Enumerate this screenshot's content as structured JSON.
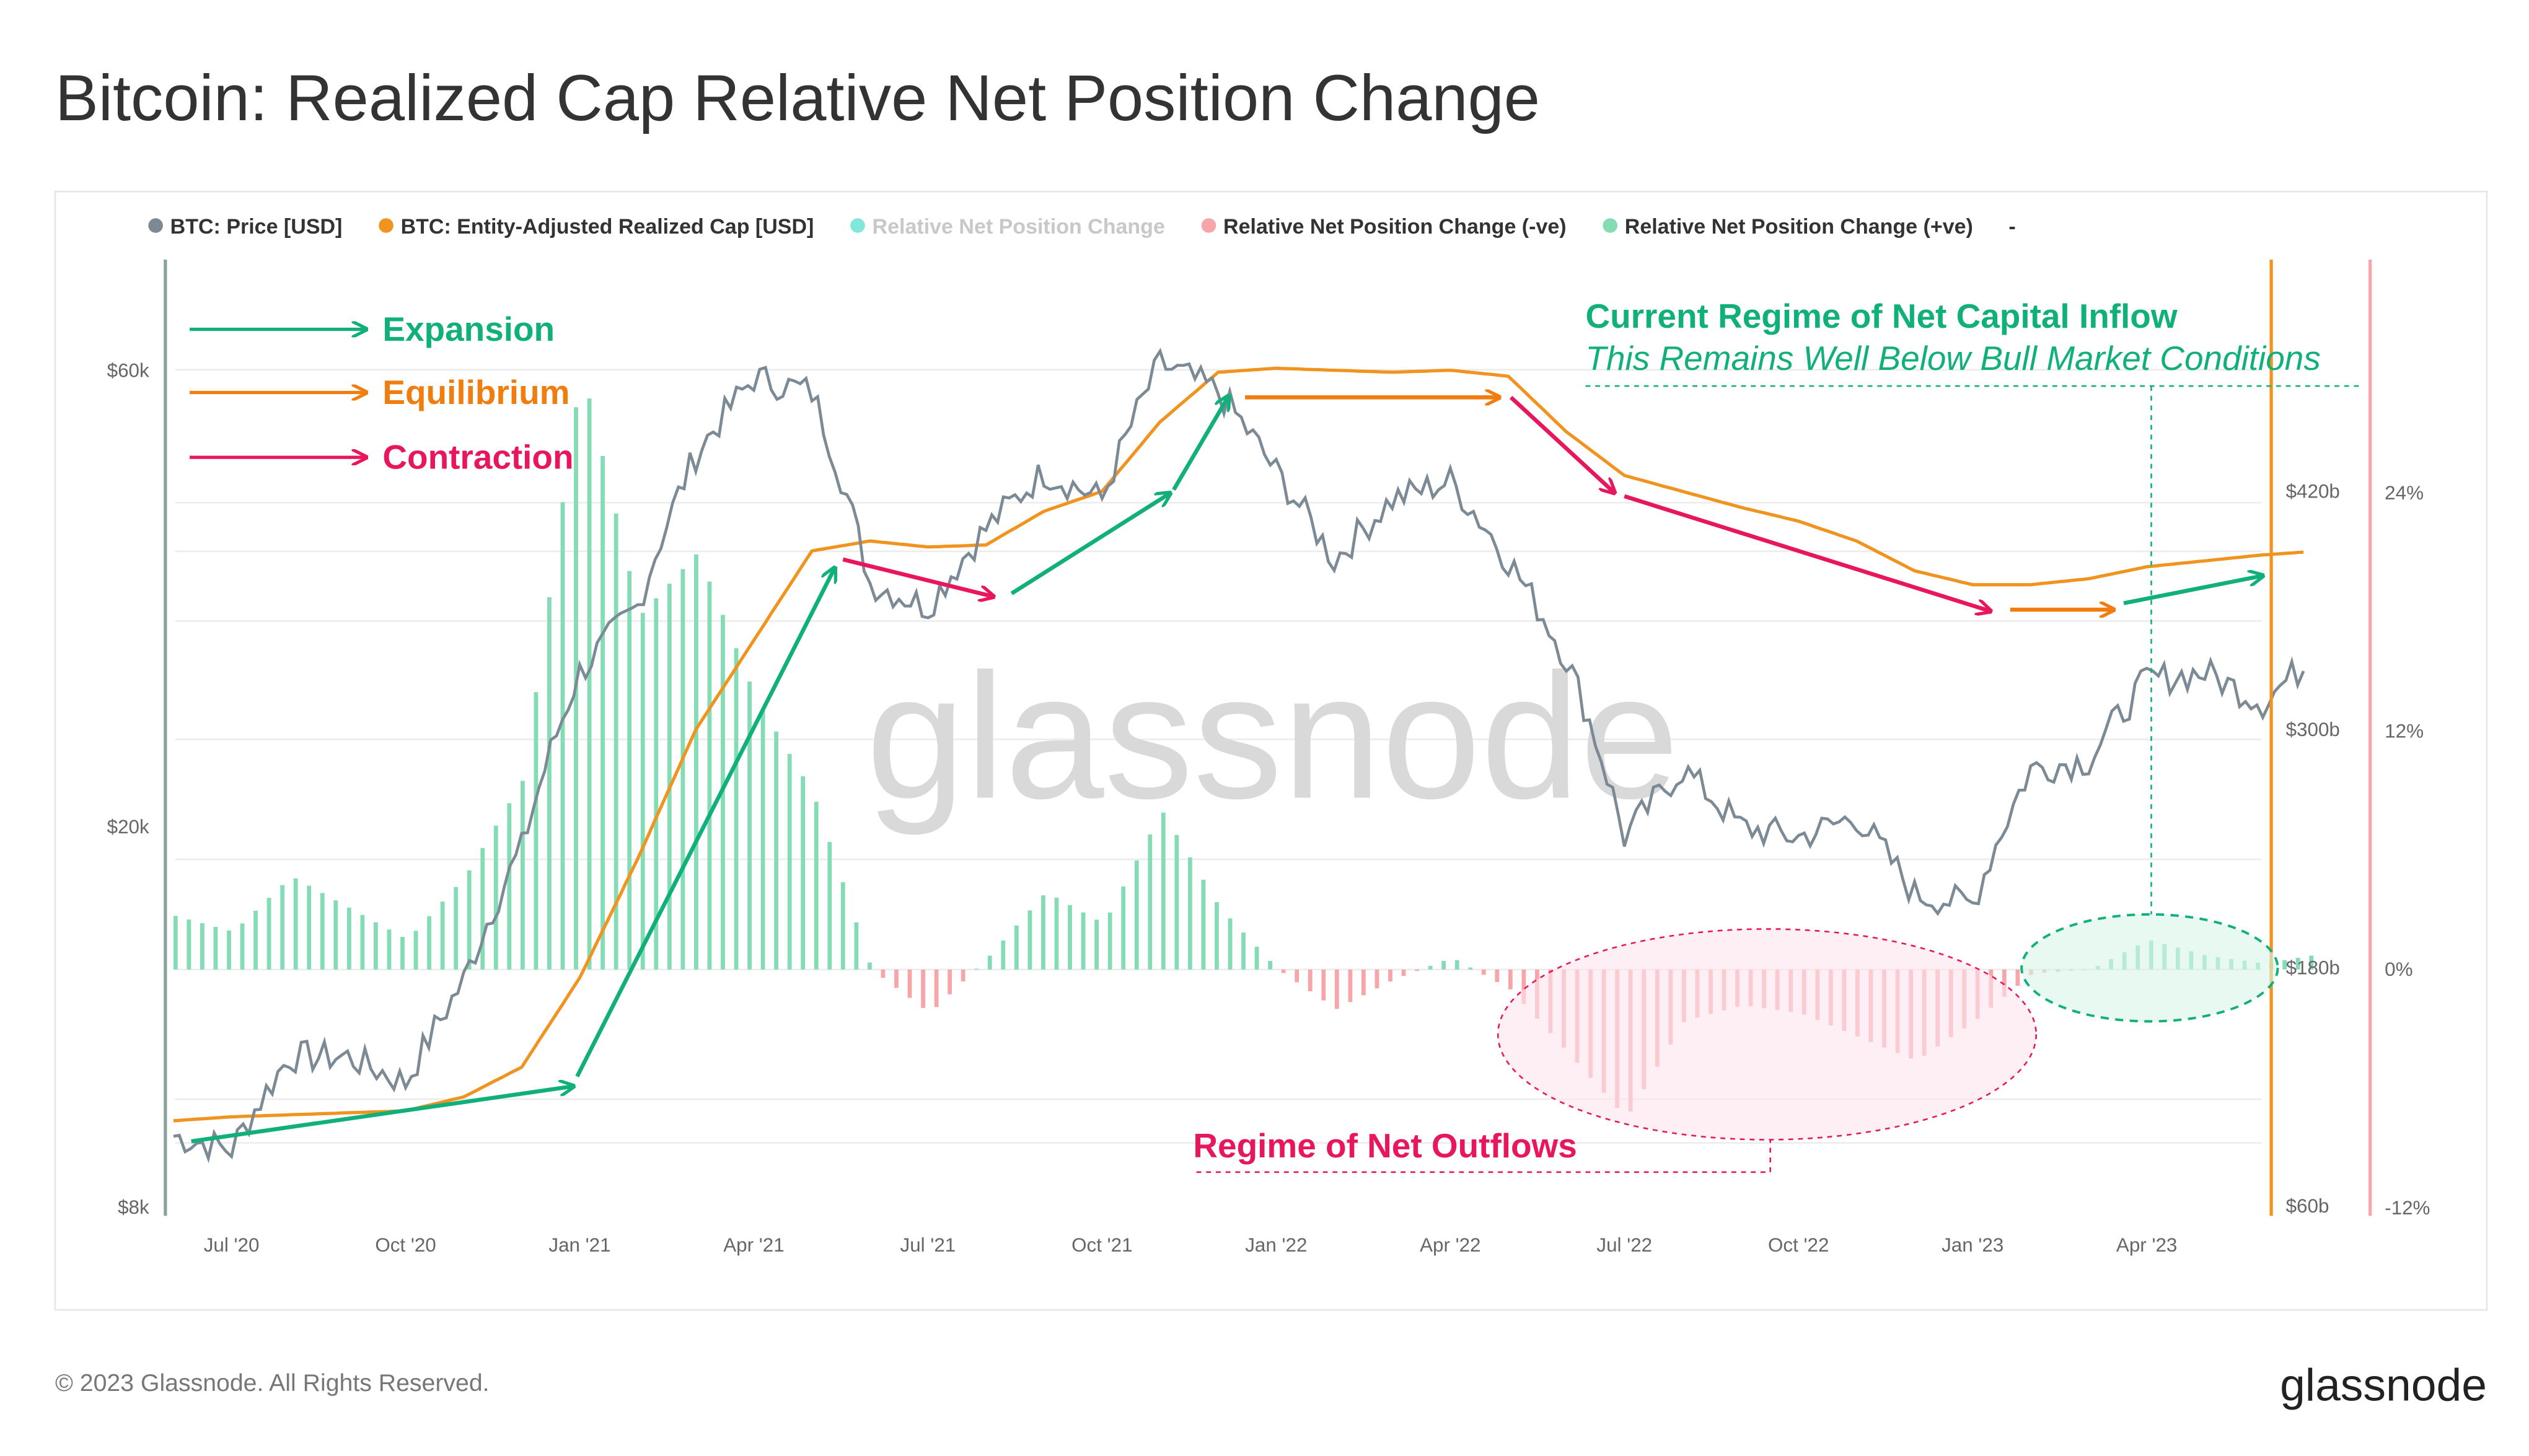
{
  "title": "Bitcoin: Realized Cap Relative Net Position Change",
  "footer": {
    "copyright": "© 2023 Glassnode. All Rights Reserved.",
    "logo": "glassnode"
  },
  "watermark": "glassnode",
  "colors": {
    "price": "#7b8a94",
    "realized_cap": "#f0931f",
    "positive": "#83dcb4",
    "negative": "#f8a5aa",
    "neutral": "#7fe8d8",
    "expansion": "#11b07a",
    "contraction": "#e8175d"
  },
  "legend": [
    {
      "label": "BTC: Price [USD]",
      "color": "#7b8a94",
      "muted": false
    },
    {
      "label": "BTC: Entity-Adjusted Realized Cap [USD]",
      "color": "#f0931f",
      "muted": false
    },
    {
      "label": "Relative Net Position Change",
      "color": "#7fe8d8",
      "muted": true
    },
    {
      "label": "Relative Net Position Change (-ve)",
      "color": "#f8a5aa",
      "muted": false
    },
    {
      "label": "Relative Net Position Change (+ve)",
      "color": "#83dcb4",
      "muted": false
    },
    {
      "label": "-",
      "color": "",
      "muted": false
    }
  ],
  "annotations": {
    "expansion": "Expansion",
    "equilibrium": "Equilibrium",
    "contraction": "Contraction",
    "inflow_title": "Current Regime of Net Capital Inflow",
    "inflow_sub": "This Remains Well Below Bull Market Conditions",
    "outflows": "Regime of Net Outflows"
  },
  "chart_data": {
    "type": "line",
    "x_ticks": [
      "Jul '20",
      "Oct '20",
      "Jan '21",
      "Apr '21",
      "Jul '21",
      "Oct '21",
      "Jan '22",
      "Apr '22",
      "Jul '22",
      "Oct '22",
      "Jan '23",
      "Apr '23"
    ],
    "y_left": {
      "scale": "log",
      "ticks": [
        "$8k",
        "$20k",
        "$60k"
      ],
      "range": [
        7000,
        70000
      ]
    },
    "y_right1": {
      "ticks": [
        "$60b",
        "$180b",
        "$300b",
        "$420b"
      ],
      "range": [
        60,
        540
      ]
    },
    "y_right2": {
      "ticks": [
        "-12%",
        "0%",
        "12%",
        "24%"
      ],
      "range": [
        -12,
        36
      ]
    },
    "x": [
      "2020-06",
      "2020-07",
      "2020-08",
      "2020-09",
      "2020-10",
      "2020-11",
      "2020-12",
      "2021-01",
      "2021-02",
      "2021-03",
      "2021-04",
      "2021-05",
      "2021-06",
      "2021-07",
      "2021-08",
      "2021-09",
      "2021-10",
      "2021-11",
      "2021-12",
      "2022-01",
      "2022-02",
      "2022-03",
      "2022-04",
      "2022-05",
      "2022-06",
      "2022-07",
      "2022-08",
      "2022-09",
      "2022-10",
      "2022-11",
      "2022-12",
      "2023-01",
      "2023-02",
      "2023-03",
      "2023-04",
      "2023-05",
      "2023-06",
      "2023-07"
    ],
    "series": [
      {
        "name": "BTC: Price [USD]",
        "axis": "y_left",
        "values": [
          9500,
          9200,
          11500,
          11500,
          10800,
          13800,
          19000,
          29000,
          34000,
          49000,
          59000,
          57000,
          36000,
          34000,
          41000,
          47000,
          44000,
          61000,
          57000,
          47000,
          38000,
          44000,
          46000,
          38000,
          30000,
          19500,
          23000,
          20000,
          19500,
          20500,
          17000,
          16600,
          23000,
          23500,
          28500,
          29000,
          27000,
          30500
        ]
      },
      {
        "name": "BTC: Entity-Adjusted Realized Cap [USD]",
        "axis": "y_right1",
        "unit": "billion USD",
        "values": [
          103,
          105,
          106,
          107,
          108,
          115,
          130,
          175,
          235,
          300,
          345,
          390,
          395,
          392,
          393,
          410,
          420,
          455,
          480,
          482,
          481,
          480,
          481,
          478,
          450,
          428,
          420,
          412,
          405,
          395,
          380,
          373,
          373,
          376,
          382,
          385,
          388,
          390
        ]
      },
      {
        "name": "Relative Net Position Change",
        "axis": "y_right2",
        "unit": "%",
        "values": [
          2.7,
          1.9,
          4.7,
          3.1,
          1.5,
          4.7,
          9.6,
          30.4,
          17.8,
          21,
          13.7,
          8.8,
          0,
          -2.2,
          0.6,
          3.9,
          2.3,
          8,
          3.1,
          0,
          -2,
          -0.5,
          0.6,
          -1,
          -4.2,
          -7.5,
          -2.6,
          -1.8,
          -2.2,
          -3.4,
          -4.6,
          -2.6,
          -0.2,
          0,
          1.5,
          0.7,
          0.3,
          0.8
        ]
      }
    ],
    "grid": true
  }
}
